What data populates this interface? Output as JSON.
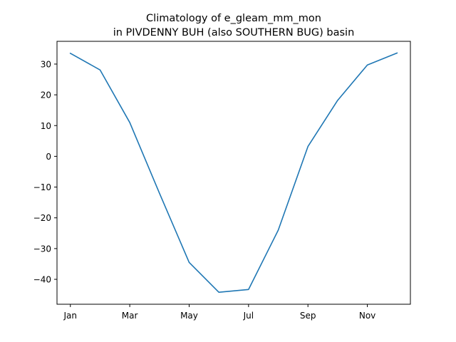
{
  "chart_data": {
    "type": "line",
    "title": [
      "Climatology of e_gleam_mm_mon",
      "in PIVDENNY BUH (also SOUTHERN BUG) basin"
    ],
    "xlabel": "",
    "ylabel": "",
    "x": [
      1,
      2,
      3,
      4,
      5,
      6,
      7,
      8,
      9,
      10,
      11,
      12
    ],
    "xticks": [
      1,
      3,
      5,
      7,
      9,
      11
    ],
    "xticklabels": [
      "Jan",
      "Mar",
      "May",
      "Jul",
      "Sep",
      "Nov"
    ],
    "yticks": [
      -40,
      -30,
      -20,
      -10,
      0,
      10,
      20,
      30
    ],
    "yticklabels": [
      "−40",
      "−30",
      "−20",
      "−10",
      "0",
      "10",
      "20",
      "30"
    ],
    "xlim": [
      0.55,
      12.45
    ],
    "ylim": [
      -48.1,
      37.4
    ],
    "grid": false,
    "series": [
      {
        "color": "#1f77b4",
        "values": [
          33.5,
          28.1,
          11.0,
          -12.0,
          -34.5,
          -44.2,
          -43.3,
          -24.0,
          3.2,
          18.2,
          29.7,
          33.6
        ]
      }
    ]
  }
}
